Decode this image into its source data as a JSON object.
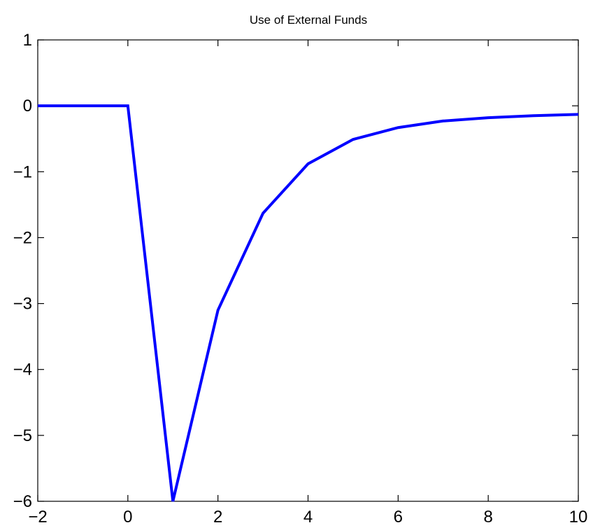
{
  "chart_data": {
    "type": "line",
    "title": "Use of External Funds",
    "xlabel": "",
    "ylabel": "",
    "xlim": [
      -2,
      10
    ],
    "ylim": [
      -6,
      1
    ],
    "xticks": [
      -2,
      0,
      2,
      4,
      6,
      8,
      10
    ],
    "yticks": [
      1,
      0,
      -1,
      -2,
      -3,
      -4,
      -5,
      -6
    ],
    "xtick_labels": [
      "−2",
      "0",
      "2",
      "4",
      "6",
      "8",
      "10"
    ],
    "ytick_labels": [
      "1",
      "0",
      "−1",
      "−2",
      "−3",
      "−4",
      "−5",
      "−6"
    ],
    "grid": false,
    "series": [
      {
        "color": "#0000ff",
        "x": [
          -2,
          -1,
          0,
          1,
          2,
          3,
          4,
          5,
          6,
          7,
          8,
          9,
          10
        ],
        "y": [
          0,
          0,
          0,
          -6.0,
          -3.1,
          -1.63,
          -0.88,
          -0.51,
          -0.33,
          -0.23,
          -0.18,
          -0.15,
          -0.13
        ]
      }
    ]
  }
}
